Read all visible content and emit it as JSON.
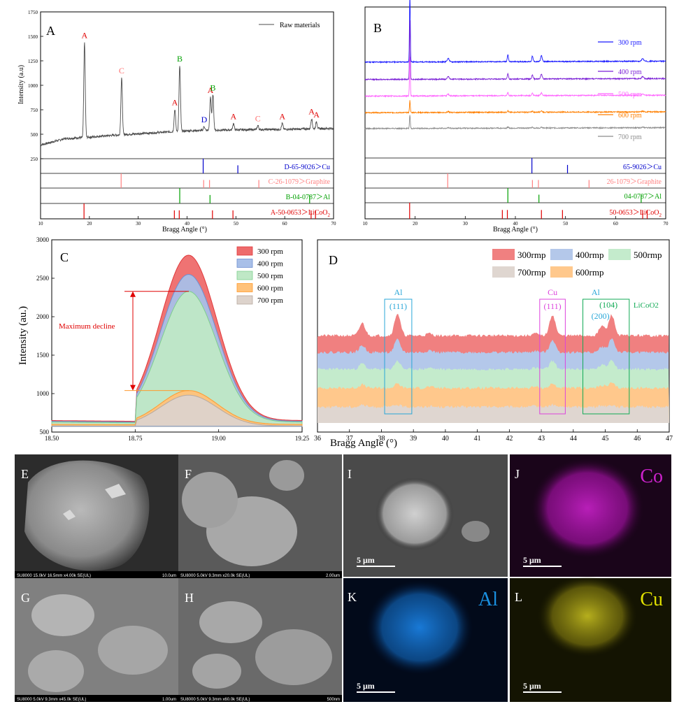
{
  "panel_letters": {
    "A": "A",
    "B": "B",
    "C": "C",
    "D": "D",
    "E": "E",
    "F": "F",
    "G": "G",
    "H": "H",
    "I": "I",
    "J": "J",
    "K": "K",
    "L": "L"
  },
  "colors": {
    "raw": "#4d4d4d",
    "rpm300": "#1a1aff",
    "rpm400": "#7a1fd6",
    "rpm500": "#ff66ff",
    "rpm600": "#ff7f00",
    "rpm700": "#8c8c8c",
    "cu_ref": "#0000cc",
    "graphite_ref": "#ff8080",
    "al_ref": "#00a000",
    "licoo2_ref": "#e00000",
    "peak_A": "#e00000",
    "peak_B": "#00a000",
    "peak_C": "#ff7070",
    "peak_D": "#0000cc",
    "maxdecline": "#e00000",
    "box_al": "#2aa7d8",
    "box_cu": "#dd44dd",
    "box_licoo2": "#11aa55",
    "co_map": "#cc22cc",
    "al_map": "#1a90e0",
    "cu_map": "#e0e000"
  },
  "chart_data": [
    {
      "panel": "A",
      "type": "line",
      "xlabel": "Bragg Angle (°)",
      "ylabel": "Intensity (a.u)",
      "xlim": [
        10,
        70
      ],
      "ylim": [
        250,
        1750
      ],
      "xticks": [
        10,
        20,
        30,
        40,
        50,
        60,
        70
      ],
      "yticks": [
        250,
        500,
        750,
        1000,
        1250,
        1500,
        1750
      ],
      "legend": {
        "label": "Raw materials",
        "position": "top-right"
      },
      "baseline": [
        [
          10,
          390
        ],
        [
          15,
          455
        ],
        [
          20,
          470
        ],
        [
          25,
          490
        ],
        [
          30,
          505
        ],
        [
          35,
          520
        ],
        [
          40,
          535
        ],
        [
          45,
          540
        ],
        [
          50,
          545
        ],
        [
          55,
          548
        ],
        [
          60,
          550
        ],
        [
          65,
          555
        ],
        [
          70,
          560
        ]
      ],
      "peaks": [
        {
          "x": 19.0,
          "y": 1440,
          "label": "A"
        },
        {
          "x": 26.6,
          "y": 1080,
          "label": "C"
        },
        {
          "x": 37.5,
          "y": 755,
          "label": "A"
        },
        {
          "x": 38.5,
          "y": 1200,
          "label": "B"
        },
        {
          "x": 43.5,
          "y": 580,
          "label": "D"
        },
        {
          "x": 44.8,
          "y": 880,
          "label": "A"
        },
        {
          "x": 45.3,
          "y": 905,
          "label": "B"
        },
        {
          "x": 49.5,
          "y": 610,
          "label": "A"
        },
        {
          "x": 54.5,
          "y": 590,
          "label": "C"
        },
        {
          "x": 59.5,
          "y": 610,
          "label": "A"
        },
        {
          "x": 65.5,
          "y": 660,
          "label": "A"
        },
        {
          "x": 66.5,
          "y": 630,
          "label": "A"
        }
      ],
      "references": [
        {
          "label": "D-65-9026＞Cu",
          "lines": [
            43.3,
            50.4
          ]
        },
        {
          "label": "C-26-1079＞Graphite",
          "lines": [
            26.5,
            43.4,
            44.6,
            54.7
          ]
        },
        {
          "label": "B-04-0787＞Al",
          "lines": [
            38.5,
            44.7,
            65.1
          ]
        },
        {
          "label": "A-50-0653＞LiCoO",
          "subscript": "2",
          "lines": [
            18.9,
            37.4,
            38.4,
            45.2,
            49.4,
            65.4,
            66.3
          ]
        }
      ]
    },
    {
      "panel": "B",
      "type": "line",
      "xlabel": "Bragg Angle (°)",
      "xlim": [
        10,
        70
      ],
      "xticks": [
        10,
        20,
        30,
        40,
        50,
        60,
        70
      ],
      "series": [
        {
          "name": "300 rpm",
          "offset": 1270,
          "peak19": 900,
          "peak38": 90
        },
        {
          "name": "400 rpm",
          "offset": 1040,
          "peak19": 780,
          "peak38": 70
        },
        {
          "name": "500 rpm",
          "offset": 820,
          "peak19": 520,
          "peak38": 40
        },
        {
          "name": "600 rpm",
          "offset": 600,
          "peak19": 160,
          "peak38": 20
        },
        {
          "name": "700 rpm",
          "offset": 390,
          "peak19": 180,
          "peak38": 15
        }
      ],
      "references": [
        {
          "label": "65-9026＞Cu",
          "lines": [
            43.3,
            50.4
          ]
        },
        {
          "label": "26-1079＞Graphite",
          "lines": [
            26.5,
            43.4,
            44.6,
            54.7
          ]
        },
        {
          "label": "04-0787＞Al",
          "lines": [
            38.5,
            44.7,
            65.1
          ]
        },
        {
          "label": "50-0653＞LiCoO",
          "subscript": "2",
          "lines": [
            18.9,
            37.4,
            38.4,
            45.2,
            49.4,
            65.4,
            66.3
          ]
        }
      ]
    },
    {
      "panel": "C",
      "type": "area",
      "ylabel": "Intensity (au.)",
      "xlim": [
        18.5,
        19.25
      ],
      "ylim": [
        500,
        3000
      ],
      "xticks": [
        18.5,
        18.75,
        19.0,
        19.25
      ],
      "xtick_labels": [
        "18.50",
        "18.75",
        "19.00",
        "19.25"
      ],
      "yticks": [
        500,
        1000,
        1500,
        2000,
        2500,
        3000
      ],
      "series": [
        {
          "name": "300 rpm",
          "peak": 2800,
          "base": 650,
          "fill": "#ee6b6b",
          "edge": "#e0393b"
        },
        {
          "name": "400 rpm",
          "peak": 2550,
          "base": 640,
          "fill": "#a8bfe8",
          "edge": "#6f8fd0"
        },
        {
          "name": "500 rpm",
          "peak": 2330,
          "base": 630,
          "fill": "#bfe8c6",
          "edge": "#7fcf8e"
        },
        {
          "name": "600 rpm",
          "peak": 1040,
          "base": 600,
          "fill": "#ffc27a",
          "edge": "#ff9a2e"
        },
        {
          "name": "700 rpm",
          "peak": 980,
          "base": 580,
          "fill": "#ddd3cc",
          "edge": "#b8aaa0"
        }
      ],
      "annotation": {
        "text": "Maximum decline",
        "from": 2330,
        "to": 1040
      }
    },
    {
      "panel": "D",
      "type": "area",
      "xlabel": "Bragg Angle (°)",
      "xlim": [
        36,
        47
      ],
      "xticks": [
        36,
        37,
        38,
        39,
        40,
        41,
        42,
        43,
        44,
        45,
        46,
        47
      ],
      "legend": [
        "300rmp",
        "400rmp",
        "500rmp",
        "700rmp",
        "600rmp"
      ],
      "series": [
        {
          "name": "300rmp",
          "fill": "#f08080",
          "base": 4
        },
        {
          "name": "400rmp",
          "fill": "#b4c8ea",
          "base": 3
        },
        {
          "name": "500rmp",
          "fill": "#c4ebcc",
          "base": 2
        },
        {
          "name": "600rmp",
          "fill": "#ffc88c",
          "base": 1
        },
        {
          "name": "700rmp",
          "fill": "#dfd6d0",
          "base": 0
        }
      ],
      "boxes": [
        {
          "x0": 38.1,
          "x1": 38.95,
          "top": "Al",
          "sub": "(111)"
        },
        {
          "x0": 42.95,
          "x1": 43.75,
          "top": "Cu",
          "sub": "(111)"
        },
        {
          "x0": 44.3,
          "x1": 45.75,
          "top": "Al",
          "sub": "(200)",
          "extra": "(104)",
          "extra2": "LiCoO2"
        }
      ]
    }
  ],
  "sem": {
    "E": {
      "bar": "SU8000 15.0kV 16.5mm x4.00k SE(UL)",
      "scale": "10.0um"
    },
    "F": {
      "bar": "SU8000 5.0kV 9.3mm x20.0k SE(UL)",
      "scale": "2.00um"
    },
    "G": {
      "bar": "SU8000 5.0kV 9.3mm x45.0k SE(UL)",
      "scale": "1.00um"
    },
    "H": {
      "bar": "SU8000 5.0kV 9.3mm x60.0k SE(UL)",
      "scale": "500nm"
    },
    "I": {
      "scale": "5 μm"
    },
    "J": {
      "element": "Co",
      "scale": "5 μm"
    },
    "K": {
      "element": "Al",
      "scale": "5 μm"
    },
    "L": {
      "element": "Cu",
      "scale": "5 μm"
    }
  }
}
